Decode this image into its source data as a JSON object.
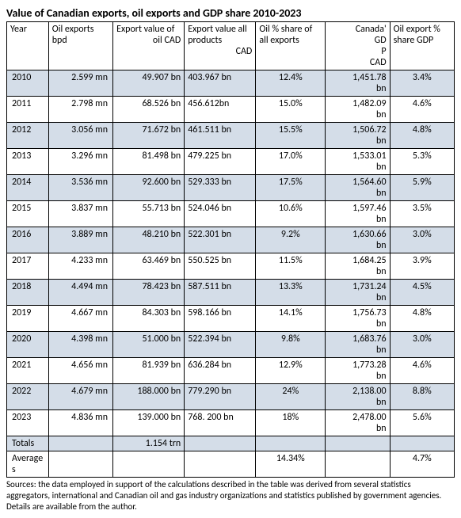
{
  "title": "Value of Canadian exports, oil exports and GDP share 2010-2023",
  "columns": {
    "year": "Year",
    "bpd": "Oil exports bpd",
    "oilval_l1": "Export value of",
    "oilval_l2": "oil CAD",
    "allval_l1": "Export value all products",
    "allval_l2": "CAD",
    "share": "Oil % share of all exports",
    "gdp_l1": "Canada'",
    "gdp_l2": "GD",
    "gdp_l3": "P",
    "gdp_l4": "CAD",
    "gdpsh": "Oil export % share GDP"
  },
  "rows": [
    {
      "shade": true,
      "year": "2010",
      "bpd": "2.599 mn",
      "oilval": "49.907 bn",
      "allval": "403.967 bn",
      "share": "12.4%",
      "gdp_v": "1,451.78",
      "gdp_u": "bn",
      "gdpsh": "3.4%"
    },
    {
      "shade": false,
      "year": "2011",
      "bpd": "2.798 mn",
      "oilval": "68.526 bn",
      "allval": "456.612bn",
      "share": "15.0%",
      "gdp_v": "1,482.09",
      "gdp_u": "bn",
      "gdpsh": "4.6%"
    },
    {
      "shade": true,
      "year": "2012",
      "bpd": "3.056 mn",
      "oilval": "71.672 bn",
      "allval": "461.511 bn",
      "share": "15.5%",
      "gdp_v": "1,506.72",
      "gdp_u": "bn",
      "gdpsh": "4.8%"
    },
    {
      "shade": false,
      "year": "2013",
      "bpd": "3.296 mn",
      "oilval": "81.498 bn",
      "allval": "479.225 bn",
      "share": "17.0%",
      "gdp_v": "1,533.01",
      "gdp_u": "bn",
      "gdpsh": "5.3%"
    },
    {
      "shade": true,
      "year": "2014",
      "bpd": "3.536 mn",
      "oilval": "92.600 bn",
      "allval": "529.333 bn",
      "share": "17.5%",
      "gdp_v": "1,564.60",
      "gdp_u": "bn",
      "gdpsh": "5.9%"
    },
    {
      "shade": false,
      "year": "2015",
      "bpd": "3.837 mn",
      "oilval": "55.713 bn",
      "allval": "524.046 bn",
      "share": "10.6%",
      "gdp_v": "1,597.46",
      "gdp_u": "bn",
      "gdpsh": "3.5%"
    },
    {
      "shade": true,
      "year": "2016",
      "bpd": "3.889 mn",
      "oilval": "48.210  bn",
      "allval": "522.301 bn",
      "share": "9.2%",
      "gdp_v": "1,630.66",
      "gdp_u": "bn",
      "gdpsh": "3.0%"
    },
    {
      "shade": false,
      "year": "2017",
      "bpd": "4.233 mn",
      "oilval": "63.469 bn",
      "allval": "550.525 bn",
      "share": "11.5%",
      "gdp_v": "1,684.25",
      "gdp_u": "bn",
      "gdpsh": "3.9%"
    },
    {
      "shade": true,
      "year": "2018",
      "bpd": "4.494 mn",
      "oilval": "78.423 bn",
      "allval": "587.511 bn",
      "share": "13.3%",
      "gdp_v": "1,731.24",
      "gdp_u": "bn",
      "gdpsh": "4.5%"
    },
    {
      "shade": false,
      "year": "2019",
      "bpd": "4.667 mn",
      "oilval": "84.303 bn",
      "allval": "598.166 bn",
      "share": "14.1%",
      "gdp_v": "1,756.73",
      "gdp_u": "bn",
      "gdpsh": "4.8%"
    },
    {
      "shade": true,
      "year": "2020",
      "bpd": "4.398 mn",
      "oilval": "51.000 bn",
      "allval": "522.394 bn",
      "share": "9.8%",
      "gdp_v": "1,683.76",
      "gdp_u": "bn",
      "gdpsh": "3.0%"
    },
    {
      "shade": false,
      "year": "2021",
      "bpd": "4.656 mn",
      "oilval": "81.939 bn",
      "allval": "636.284 bn",
      "share": "12.9%",
      "gdp_v": "1,773.28",
      "gdp_u": "bn",
      "gdpsh": "4.6%"
    },
    {
      "shade": true,
      "year": "2022",
      "bpd": "4.679 mn",
      "oilval": "188.000 bn",
      "allval": "779.290 bn",
      "share": "24%",
      "gdp_v": "2,138.00",
      "gdp_u": "bn",
      "gdpsh": "8.8%"
    },
    {
      "shade": false,
      "year": "2023",
      "bpd": "4.836 mn",
      "oilval": "139.000 bn",
      "allval": "768. 200 bn",
      "share": "18%",
      "gdp_v": "2,478.00",
      "gdp_u": "bn",
      "gdpsh": "5.6%"
    }
  ],
  "totals": {
    "label": "Totals",
    "oilval": "1.154 trn"
  },
  "averages": {
    "label": "Average s",
    "share": "14.34%",
    "gdpsh": "4.7%"
  },
  "sources": "Sources: the data employed in support of the calculations described in the table was derived from several statistics aggregators, international and Canadian oil and gas industry organizations and statistics published by government agencies. Details are available from the author."
}
